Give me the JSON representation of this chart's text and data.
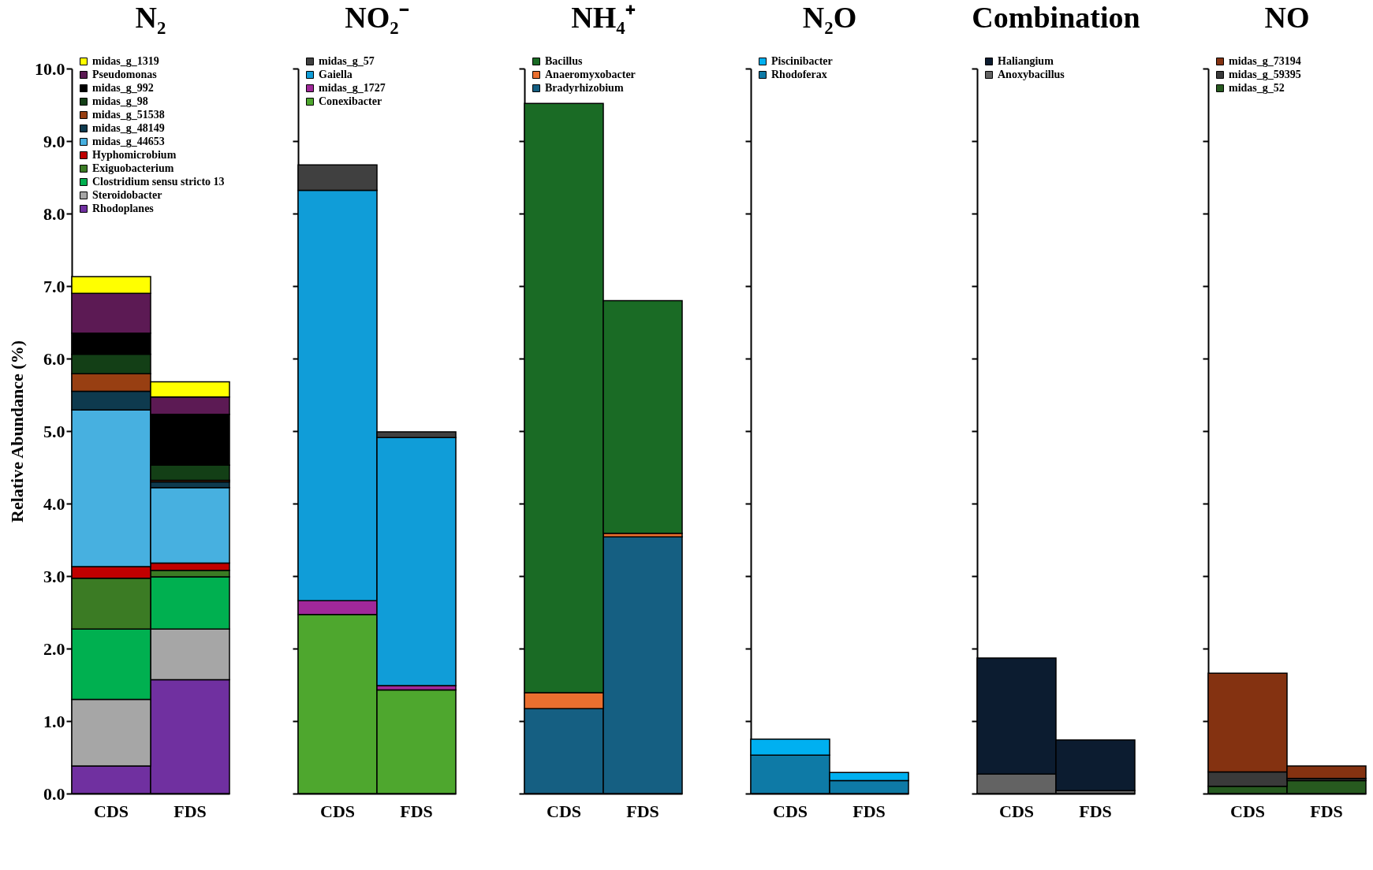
{
  "chart_data": [
    {
      "type": "bar",
      "title": "N₂",
      "ylabel": "Relative Abundance (%)",
      "categories": [
        "CDS",
        "FDS"
      ],
      "stacked": true,
      "grid": false,
      "legend": "top left",
      "ylim": [
        0,
        10
      ],
      "yticks": [
        {
          "value": 0,
          "label": "0.0"
        },
        {
          "value": 1,
          "label": "1.0"
        },
        {
          "value": 2,
          "label": "2.0"
        },
        {
          "value": 3,
          "label": "3.0"
        },
        {
          "value": 4,
          "label": "4.0"
        },
        {
          "value": 5,
          "label": "5.0"
        },
        {
          "value": 6,
          "label": "6.0"
        },
        {
          "value": 7,
          "label": "7.0"
        },
        {
          "value": 8,
          "label": "8.0"
        },
        {
          "value": 9,
          "label": "9.0"
        },
        {
          "value": 10,
          "label": "10.0"
        }
      ],
      "series": [
        {
          "name": "Rhodoplanes",
          "color": "#7030a0",
          "values": [
            0.38,
            1.57
          ]
        },
        {
          "name": "Steroidobacter",
          "color": "#a6a6a6",
          "values": [
            0.92,
            0.7
          ]
        },
        {
          "name": "Clostridium sensu stricto 13",
          "color": "#00b050",
          "values": [
            0.97,
            0.72
          ]
        },
        {
          "name": "Exiguobacterium",
          "color": "#3b7b24",
          "values": [
            0.7,
            0.09
          ]
        },
        {
          "name": "Hyphomicrobium",
          "color": "#c00000",
          "values": [
            0.16,
            0.1
          ]
        },
        {
          "name": "midas_g_44653",
          "color": "#47b0e0",
          "values": [
            2.16,
            1.04
          ]
        },
        {
          "name": "midas_g_48149",
          "color": "#0e3a4e",
          "values": [
            0.26,
            0.08
          ]
        },
        {
          "name": "midas_g_51538",
          "color": "#983f12",
          "values": [
            0.24,
            0.02
          ]
        },
        {
          "name": "midas_g_98",
          "color": "#133f16",
          "values": [
            0.27,
            0.21
          ]
        },
        {
          "name": "midas_g_992",
          "color": "#000000",
          "values": [
            0.29,
            0.7
          ]
        },
        {
          "name": "Pseudomonas",
          "color": "#5c1a54",
          "values": [
            0.55,
            0.24
          ]
        },
        {
          "name": "midas_g_1319",
          "color": "#ffff00",
          "values": [
            0.23,
            0.21
          ]
        }
      ]
    },
    {
      "type": "bar",
      "title": "NO₂⁻",
      "categories": [
        "CDS",
        "FDS"
      ],
      "stacked": true,
      "grid": false,
      "legend": "top left",
      "ylim": [
        0,
        10
      ],
      "yticks": [
        0,
        1,
        2,
        3,
        4,
        5,
        6,
        7,
        8,
        9,
        10
      ],
      "tick_labels": "x",
      "series": [
        {
          "name": "Conexibacter",
          "color": "#4ea72e",
          "values": [
            2.47,
            1.43
          ]
        },
        {
          "name": "midas_g_1727",
          "color": "#a0289a",
          "values": [
            0.19,
            0.06
          ]
        },
        {
          "name": "Gaiella",
          "color": "#109dd8",
          "values": [
            5.66,
            3.42
          ]
        },
        {
          "name": "midas_g_57",
          "color": "#404040",
          "values": [
            0.35,
            0.08
          ]
        }
      ]
    },
    {
      "type": "bar",
      "title": "NH₄⁺",
      "categories": [
        "CDS",
        "FDS"
      ],
      "stacked": true,
      "grid": false,
      "legend": "top left",
      "ylim": [
        0,
        10
      ],
      "yticks": [
        0,
        1,
        2,
        3,
        4,
        5,
        6,
        7,
        8,
        9,
        10
      ],
      "tick_labels": "x",
      "series": [
        {
          "name": "Bradyrhizobium",
          "color": "#155f82",
          "values": [
            1.17,
            3.54
          ]
        },
        {
          "name": "Anaeromyxobacter",
          "color": "#ea6f2f",
          "values": [
            0.22,
            0.05
          ]
        },
        {
          "name": "Bacillus",
          "color": "#1a6b25",
          "values": [
            8.13,
            3.21
          ]
        }
      ]
    },
    {
      "type": "bar",
      "title": "N₂O",
      "categories": [
        "CDS",
        "FDS"
      ],
      "stacked": true,
      "grid": false,
      "legend": "top left",
      "ylim": [
        0,
        10
      ],
      "yticks": [
        0,
        1,
        2,
        3,
        4,
        5,
        6,
        7,
        8,
        9,
        10
      ],
      "tick_labels": "x",
      "series": [
        {
          "name": "Rhodoferax",
          "color": "#0e7aa6",
          "values": [
            0.53,
            0.18
          ]
        },
        {
          "name": "Piscinibacter",
          "color": "#00b0f0",
          "values": [
            0.22,
            0.11
          ]
        }
      ]
    },
    {
      "type": "bar",
      "title": "Combination",
      "categories": [
        "CDS",
        "FDS"
      ],
      "stacked": true,
      "grid": false,
      "legend": "top left",
      "ylim": [
        0,
        10
      ],
      "yticks": [
        0,
        1,
        2,
        3,
        4,
        5,
        6,
        7,
        8,
        9,
        10
      ],
      "tick_labels": "x",
      "series": [
        {
          "name": "Anoxybacillus",
          "color": "#636363",
          "values": [
            0.27,
            0.04
          ]
        },
        {
          "name": "Haliangium",
          "color": "#0c1c30",
          "values": [
            1.6,
            0.7
          ]
        }
      ]
    },
    {
      "type": "bar",
      "title": "NO",
      "categories": [
        "CDS",
        "FDS"
      ],
      "stacked": true,
      "grid": false,
      "legend": "top left",
      "ylim": [
        0,
        10
      ],
      "yticks": [
        0,
        1,
        2,
        3,
        4,
        5,
        6,
        7,
        8,
        9,
        10
      ],
      "tick_labels": "x",
      "series": [
        {
          "name": "midas_g_52",
          "color": "#275a1f",
          "values": [
            0.1,
            0.18
          ]
        },
        {
          "name": "midas_g_59395",
          "color": "#3a3a3a",
          "values": [
            0.2,
            0.03
          ]
        },
        {
          "name": "midas_g_73194",
          "color": "#843211",
          "values": [
            1.36,
            0.17
          ]
        }
      ]
    }
  ]
}
